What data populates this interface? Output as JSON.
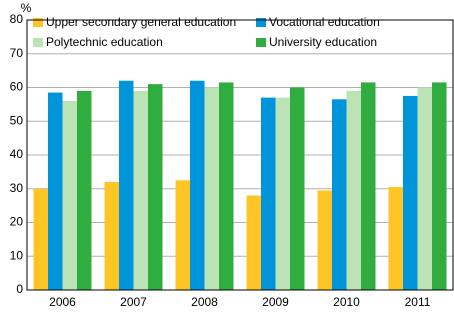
{
  "chart_data": {
    "type": "bar",
    "y_label": "%",
    "categories": [
      "2006",
      "2007",
      "2008",
      "2009",
      "2010",
      "2011"
    ],
    "series": [
      {
        "name": "Upper secondary general education",
        "color": "#ffc425",
        "values": [
          30,
          32,
          32.5,
          28,
          29.5,
          30.5
        ]
      },
      {
        "name": "Vocational education",
        "color": "#0095db",
        "values": [
          58.5,
          62,
          62,
          57,
          56.5,
          57.5
        ]
      },
      {
        "name": "Polytechnic education",
        "color": "#bce3b5",
        "values": [
          56,
          59,
          60,
          57,
          59,
          60
        ]
      },
      {
        "name": "University education",
        "color": "#2fad3f",
        "values": [
          59,
          61,
          61.5,
          60,
          61.5,
          61.5
        ]
      }
    ],
    "ylim": [
      0,
      80
    ],
    "yticks": [
      0,
      10,
      20,
      30,
      40,
      50,
      60,
      70,
      80
    ],
    "grid": true
  }
}
